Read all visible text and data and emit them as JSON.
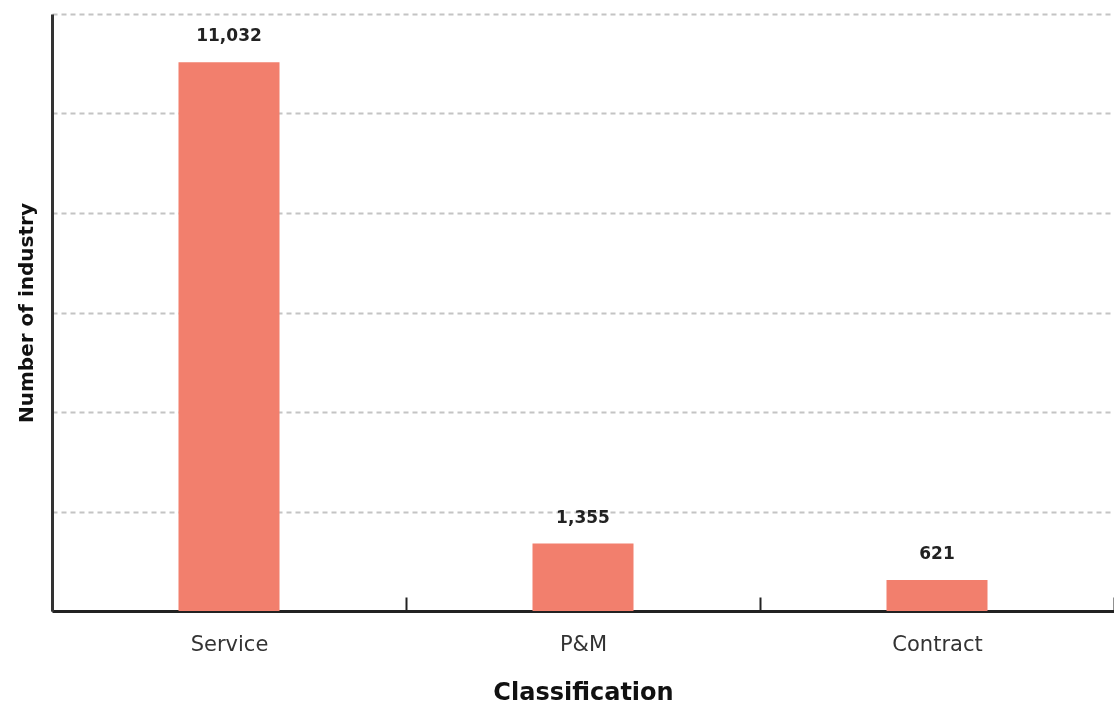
{
  "chart_data": {
    "type": "bar",
    "xlabel": "Classification",
    "ylabel": "Number of industry",
    "categories": [
      "Service",
      "P&M",
      "Contract"
    ],
    "values": [
      11032,
      1355,
      621
    ],
    "value_labels": [
      "11,032",
      "1,355",
      "621"
    ],
    "color": "#f27f6d",
    "ylim": [
      0,
      12000
    ],
    "yticks": [
      {
        "value": 0,
        "label": null
      },
      {
        "value": 2000,
        "label": null
      },
      {
        "value": 4000,
        "label": null
      },
      {
        "value": 6000,
        "label": null
      },
      {
        "value": 8000,
        "label": null
      },
      {
        "value": 10000,
        "label": null
      },
      {
        "value": 12000,
        "label": null
      }
    ],
    "grid": "y",
    "tick_labels": "x"
  }
}
